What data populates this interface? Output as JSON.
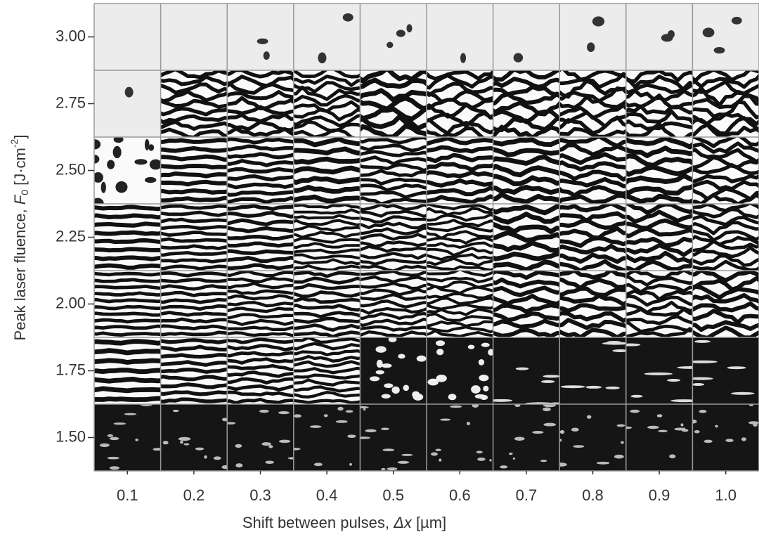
{
  "chart_data": {
    "type": "image-grid",
    "x_label": {
      "text": "Shift between pulses, ",
      "symbol": "Δx",
      "unit": " [µm]"
    },
    "y_label": {
      "text": "Peak laser fluence, ",
      "symbol": "F",
      "subscript": "0",
      "unit_open": " [J·cm",
      "superscript": "-2",
      "unit_close": "]"
    },
    "xlim": [
      0.05,
      1.05
    ],
    "xticks": [
      0.1,
      0.2,
      0.3,
      0.4,
      0.5,
      0.6,
      0.7,
      0.8,
      0.9,
      {
        "value": 1.0,
        "label": "1.0"
      }
    ],
    "ylim": [
      1.375,
      3.125
    ],
    "yticks": [
      {
        "value": 1.5,
        "label": "1.50"
      },
      {
        "value": 1.75,
        "label": "1.75"
      },
      {
        "value": 2.0,
        "label": "2.00"
      },
      {
        "value": 2.25,
        "label": "2.25"
      },
      {
        "value": 2.5,
        "label": "2.50"
      },
      {
        "value": 2.75,
        "label": "2.75"
      },
      {
        "value": 3.0,
        "label": "3.00"
      }
    ]
  }
}
